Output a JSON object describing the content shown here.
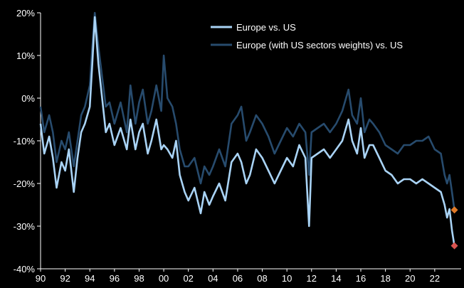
{
  "chart_data": {
    "type": "line",
    "title": "",
    "xlabel": "",
    "ylabel": "",
    "xlim": [
      1990,
      2023.8
    ],
    "ylim": [
      -40,
      20
    ],
    "grid": false,
    "legend_position": "top-right",
    "x_ticks": [
      {
        "value": 1990,
        "label": "90"
      },
      {
        "value": 1992,
        "label": "92"
      },
      {
        "value": 1994,
        "label": "94"
      },
      {
        "value": 1996,
        "label": "96"
      },
      {
        "value": 1998,
        "label": "98"
      },
      {
        "value": 2000,
        "label": "00"
      },
      {
        "value": 2002,
        "label": "02"
      },
      {
        "value": 2004,
        "label": "04"
      },
      {
        "value": 2006,
        "label": "06"
      },
      {
        "value": 2008,
        "label": "08"
      },
      {
        "value": 2010,
        "label": "10"
      },
      {
        "value": 2012,
        "label": "12"
      },
      {
        "value": 2014,
        "label": "14"
      },
      {
        "value": 2016,
        "label": "16"
      },
      {
        "value": 2018,
        "label": "18"
      },
      {
        "value": 2020,
        "label": "20"
      },
      {
        "value": 2022,
        "label": "22"
      }
    ],
    "y_ticks": [
      {
        "value": 20,
        "label": "20%"
      },
      {
        "value": 10,
        "label": "10%"
      },
      {
        "value": 0,
        "label": "0%"
      },
      {
        "value": -10,
        "label": "-10%"
      },
      {
        "value": -20,
        "label": "-20%"
      },
      {
        "value": -30,
        "label": "-30%"
      },
      {
        "value": -40,
        "label": "-40%"
      }
    ],
    "series": [
      {
        "name": "Europe vs. US",
        "color": "#a9d3f5",
        "x": [
          1990,
          1990.3,
          1990.7,
          1991,
          1991.3,
          1991.7,
          1992,
          1992.3,
          1992.7,
          1993,
          1993.3,
          1993.6,
          1994,
          1994.2,
          1994.4,
          1994.7,
          1995,
          1995.3,
          1995.6,
          1996,
          1996.5,
          1997,
          1997.3,
          1997.7,
          1998,
          1998.3,
          1998.7,
          1999,
          1999.4,
          1999.8,
          2000,
          2000.3,
          2000.7,
          2001,
          2001.3,
          2001.7,
          2002,
          2002.5,
          2003,
          2003.3,
          2003.7,
          2004,
          2004.5,
          2005,
          2005.5,
          2006,
          2006.3,
          2006.7,
          2007,
          2007.5,
          2008,
          2008.5,
          2009,
          2009.5,
          2010,
          2010.5,
          2011,
          2011.5,
          2011.8,
          2012,
          2012.5,
          2013,
          2013.5,
          2014,
          2014.5,
          2015,
          2015.3,
          2015.7,
          2016,
          2016.3,
          2016.7,
          2017,
          2017.5,
          2018,
          2018.5,
          2019,
          2019.5,
          2020,
          2020.5,
          2021,
          2021.5,
          2022,
          2022.5,
          2022.8,
          2023,
          2023.2,
          2023.4,
          2023.6
        ],
        "values": [
          -6,
          -13,
          -9,
          -14,
          -21,
          -15,
          -17,
          -12,
          -22,
          -14,
          -8,
          -6,
          -2,
          8,
          19,
          8,
          0,
          -8,
          -6,
          -11,
          -7,
          -12,
          -5,
          -12,
          -8,
          -6,
          -13,
          -10,
          -5,
          -12,
          -11,
          -12,
          -14,
          -10,
          -18,
          -22,
          -24,
          -21,
          -27,
          -22,
          -25,
          -23,
          -20,
          -24,
          -15,
          -13,
          -15,
          -20,
          -18,
          -12,
          -14,
          -17,
          -20,
          -17,
          -14,
          -16,
          -11,
          -14,
          -30,
          -14,
          -13,
          -12,
          -14,
          -12,
          -10,
          -5,
          -10,
          -13,
          -7,
          -14,
          -11,
          -11,
          -14,
          -17,
          -18,
          -20,
          -19,
          -19,
          -20,
          -19,
          -20,
          -21,
          -22,
          -25,
          -28,
          -26,
          -31,
          -34.6
        ]
      },
      {
        "name": "Europe (with US sectors weights) vs. US",
        "color": "#274b6d",
        "x": [
          1990,
          1990.3,
          1990.7,
          1991,
          1991.3,
          1991.7,
          1992,
          1992.3,
          1992.7,
          1993,
          1993.3,
          1993.6,
          1994,
          1994.2,
          1994.4,
          1994.7,
          1995,
          1995.3,
          1995.6,
          1996,
          1996.5,
          1997,
          1997.3,
          1997.7,
          1998,
          1998.3,
          1998.7,
          1999,
          1999.4,
          1999.8,
          2000,
          2000.3,
          2000.7,
          2001,
          2001.3,
          2001.7,
          2002,
          2002.5,
          2003,
          2003.3,
          2003.7,
          2004,
          2004.5,
          2005,
          2005.5,
          2006,
          2006.3,
          2006.7,
          2007,
          2007.5,
          2008,
          2008.5,
          2009,
          2009.5,
          2010,
          2010.5,
          2011,
          2011.5,
          2011.8,
          2012,
          2012.5,
          2013,
          2013.5,
          2014,
          2014.5,
          2015,
          2015.3,
          2015.7,
          2016,
          2016.3,
          2016.7,
          2017,
          2017.5,
          2018,
          2018.5,
          2019,
          2019.5,
          2020,
          2020.5,
          2021,
          2021.5,
          2022,
          2022.5,
          2022.8,
          2023,
          2023.2,
          2023.4,
          2023.6
        ],
        "values": [
          -2,
          -8,
          -4,
          -8,
          -15,
          -10,
          -12,
          -8,
          -16,
          -10,
          -4,
          -2,
          3,
          12,
          20,
          12,
          5,
          -2,
          -1,
          -6,
          -1,
          -8,
          3,
          -6,
          -1,
          2,
          -6,
          -3,
          3,
          -3,
          10,
          0,
          -2,
          -6,
          -12,
          -16,
          -16,
          -14,
          -20,
          -16,
          -18,
          -16,
          -12,
          -16,
          -6,
          -4,
          -2,
          -10,
          -8,
          -4,
          -6,
          -9,
          -13,
          -10,
          -7,
          -9,
          -6,
          -8,
          -18,
          -8,
          -7,
          -6,
          -8,
          -6,
          -3,
          2,
          -4,
          -6,
          0,
          -8,
          -5,
          -6,
          -8,
          -11,
          -12,
          -13,
          -11,
          -11,
          -10,
          -10,
          -9,
          -12,
          -13,
          -18,
          -20,
          -18,
          -22,
          -26.2
        ]
      }
    ],
    "end_markers": [
      {
        "series": "Europe (with US sectors weights) vs. US",
        "x": 2023.6,
        "y": -26.2,
        "color": "#e07a28"
      },
      {
        "series": "Europe vs. US",
        "x": 2023.6,
        "y": -34.6,
        "color": "#d9534f"
      }
    ]
  }
}
